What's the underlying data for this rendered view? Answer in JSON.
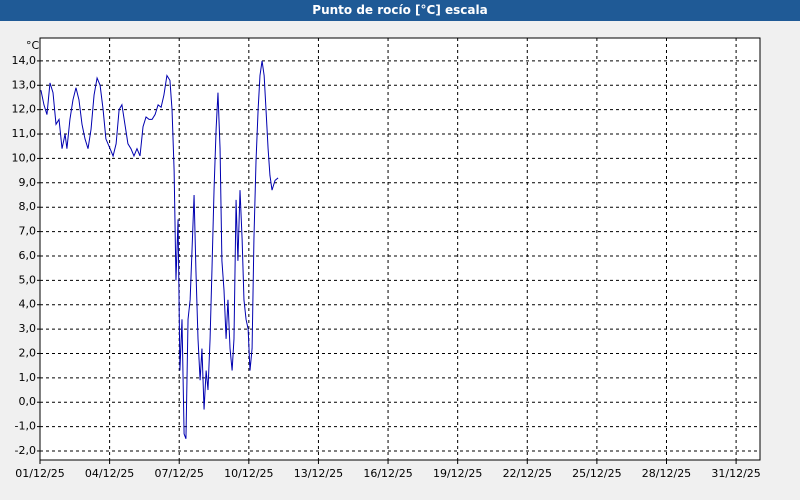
{
  "chart_data": {
    "type": "line",
    "title": "Punto de rocío [°C] escala",
    "y_label": "°C",
    "color": "#0000b0",
    "grid": true,
    "xlim": [
      1,
      32.03
    ],
    "ylim": [
      -2.37,
      14.94
    ],
    "xticks": [
      {
        "value": 1,
        "label": "01/12/25"
      },
      {
        "value": 4,
        "label": "04/12/25"
      },
      {
        "value": 7,
        "label": "07/12/25"
      },
      {
        "value": 10,
        "label": "10/12/25"
      },
      {
        "value": 13,
        "label": "13/12/25"
      },
      {
        "value": 16,
        "label": "16/12/25"
      },
      {
        "value": 19,
        "label": "19/12/25"
      },
      {
        "value": 22,
        "label": "22/12/25"
      },
      {
        "value": 25,
        "label": "25/12/25"
      },
      {
        "value": 28,
        "label": "28/12/25"
      },
      {
        "value": 31,
        "label": "31/12/25"
      }
    ],
    "yticks": [
      {
        "value": -2,
        "label": "-2,0"
      },
      {
        "value": -1,
        "label": "-1,0"
      },
      {
        "value": 0,
        "label": "0,0"
      },
      {
        "value": 1,
        "label": "1,0"
      },
      {
        "value": 2,
        "label": "2,0"
      },
      {
        "value": 3,
        "label": "3,0"
      },
      {
        "value": 4,
        "label": "4,0"
      },
      {
        "value": 5,
        "label": "5,0"
      },
      {
        "value": 6,
        "label": "6,0"
      },
      {
        "value": 7,
        "label": "7,0"
      },
      {
        "value": 8,
        "label": "8,0"
      },
      {
        "value": 9,
        "label": "9,0"
      },
      {
        "value": 10,
        "label": "10,0"
      },
      {
        "value": 11,
        "label": "11,0"
      },
      {
        "value": 12,
        "label": "12,0"
      },
      {
        "value": 13,
        "label": "13,0"
      },
      {
        "value": 14,
        "label": "14,0"
      }
    ],
    "x": [
      1.04,
      1.17,
      1.3,
      1.43,
      1.56,
      1.69,
      1.82,
      1.95,
      2.08,
      2.16,
      2.29,
      2.42,
      2.55,
      2.68,
      2.81,
      2.94,
      3.07,
      3.2,
      3.33,
      3.46,
      3.59,
      3.72,
      3.84,
      4.02,
      4.15,
      4.28,
      4.41,
      4.53,
      4.66,
      4.79,
      4.92,
      5.05,
      5.18,
      5.31,
      5.44,
      5.57,
      5.7,
      5.83,
      5.96,
      6.09,
      6.22,
      6.34,
      6.47,
      6.6,
      6.69,
      6.78,
      6.86,
      6.95,
      7.03,
      7.12,
      7.21,
      7.29,
      7.38,
      7.47,
      7.55,
      7.64,
      7.72,
      7.81,
      7.9,
      7.98,
      8.07,
      8.16,
      8.24,
      8.33,
      8.41,
      8.5,
      8.59,
      8.67,
      8.76,
      8.84,
      8.93,
      9.02,
      9.1,
      9.19,
      9.28,
      9.36,
      9.45,
      9.53,
      9.62,
      9.71,
      9.79,
      9.88,
      9.97,
      10.05,
      10.14,
      10.22,
      10.31,
      10.4,
      10.48,
      10.57,
      10.66,
      10.74,
      10.83,
      10.91,
      11.0,
      11.13,
      11.26
    ],
    "values": [
      12.8,
      12.2,
      11.8,
      13.1,
      12.7,
      11.4,
      11.6,
      10.4,
      11.0,
      10.4,
      11.6,
      12.4,
      12.9,
      12.4,
      11.4,
      10.8,
      10.4,
      11.2,
      12.6,
      13.3,
      13.0,
      12.0,
      10.8,
      10.4,
      10.1,
      10.6,
      12.0,
      12.2,
      11.4,
      10.6,
      10.4,
      10.1,
      10.4,
      10.1,
      11.3,
      11.7,
      11.6,
      11.6,
      11.8,
      12.2,
      12.1,
      12.6,
      13.4,
      13.2,
      12.0,
      9.5,
      5.0,
      7.5,
      1.3,
      3.4,
      -1.3,
      -1.5,
      3.4,
      4.2,
      6.2,
      8.5,
      5.4,
      2.6,
      0.9,
      2.2,
      -0.3,
      1.3,
      0.5,
      2.6,
      5.4,
      8.7,
      11.2,
      12.7,
      10.4,
      5.8,
      4.6,
      2.6,
      4.2,
      2.2,
      1.3,
      2.6,
      8.3,
      5.8,
      8.7,
      6.7,
      4.2,
      3.4,
      3.0,
      1.3,
      2.2,
      6.7,
      9.9,
      12.0,
      13.4,
      14.0,
      13.4,
      12.0,
      10.4,
      9.3,
      8.7,
      9.1,
      9.2
    ]
  }
}
